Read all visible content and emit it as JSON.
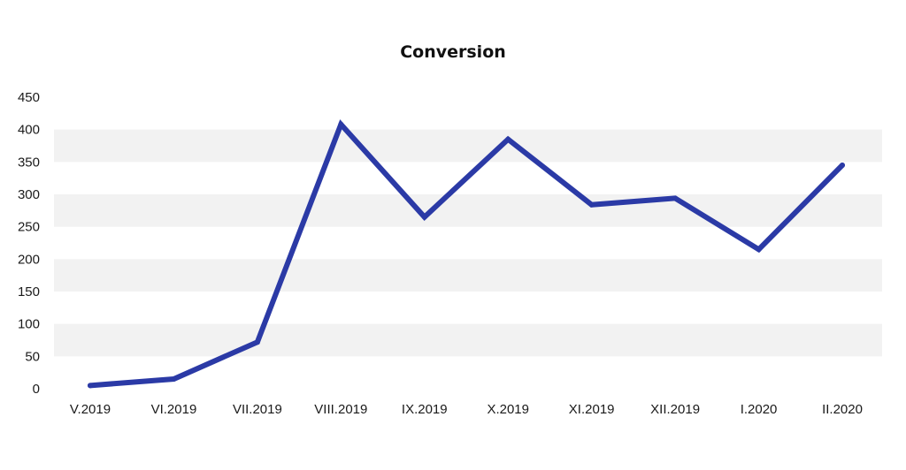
{
  "chart_data": {
    "type": "line",
    "title": "Conversion",
    "xlabel": "",
    "ylabel": "",
    "categories": [
      "V.2019",
      "VI.2019",
      "VII.2019",
      "VIII.2019",
      "IX.2019",
      "X.2019",
      "XI.2019",
      "XII.2019",
      "I.2020",
      "II.2020"
    ],
    "series": [
      {
        "values": [
          5,
          15,
          72,
          408,
          265,
          385,
          284,
          294,
          215,
          345
        ],
        "color": "#2b3aa6"
      }
    ],
    "ylim": [
      0,
      450
    ],
    "yticks": [
      0,
      50,
      100,
      150,
      200,
      250,
      300,
      350,
      400,
      450
    ],
    "grid": "alternating horizontal bands",
    "band_color": "#f2f2f2",
    "legend": "none"
  }
}
